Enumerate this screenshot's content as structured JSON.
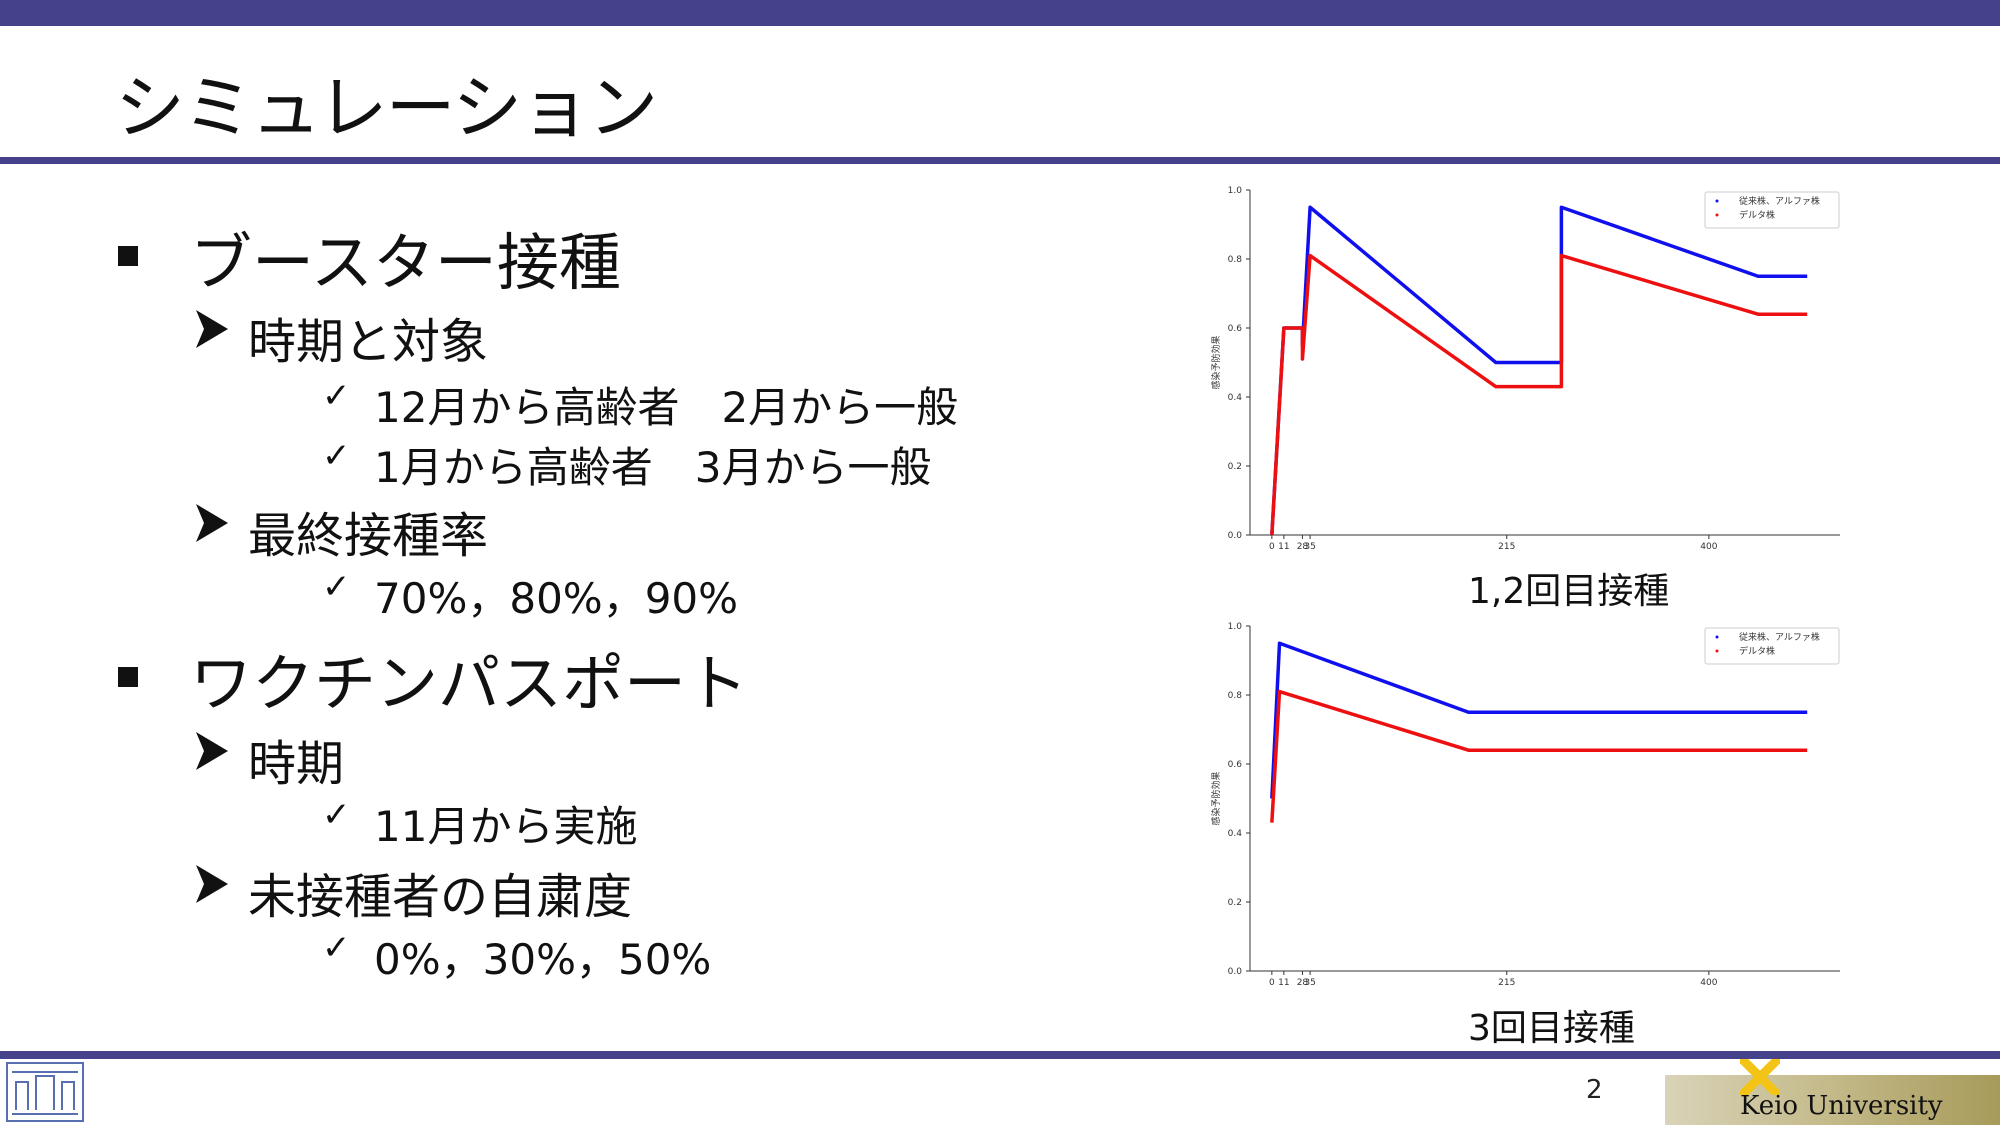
{
  "title": "シミュレーション",
  "sections": [
    {
      "label": "ブースター接種",
      "subs": [
        {
          "label": "時期と対象",
          "items": [
            "12月から高齢者　2月から一般",
            "1月から高齢者　3月から一般"
          ]
        },
        {
          "label": "最終接種率",
          "items": [
            "70%，80%，90%"
          ]
        }
      ]
    },
    {
      "label": "ワクチンパスポート",
      "subs": [
        {
          "label": "時期",
          "items": [
            "11月から実施"
          ]
        },
        {
          "label": "未接種者の自粛度",
          "items": [
            "0%，30%，50%"
          ]
        }
      ]
    }
  ],
  "captions": [
    "1,2回目接種",
    "3回目接種"
  ],
  "page_number": "2",
  "university": "Keio University",
  "colors": {
    "accent": "#45418a",
    "blue_series": "#1010ee",
    "red_series": "#ee1010"
  },
  "chart_data": [
    {
      "type": "line",
      "ylabel": "感染予防効果",
      "ylim": [
        0.0,
        1.0
      ],
      "yticks": [
        "0.0",
        "0.2",
        "0.4",
        "0.6",
        "0.8",
        "1.0"
      ],
      "xlim": [
        -20,
        520
      ],
      "xticks": [
        {
          "v": 0,
          "label": "0"
        },
        {
          "v": 11,
          "label": "11"
        },
        {
          "v": 28,
          "label": "28"
        },
        {
          "v": 35,
          "label": "35"
        },
        {
          "v": 215,
          "label": "215"
        },
        {
          "v": 400,
          "label": "400"
        }
      ],
      "legend": {
        "position": "top-right",
        "labels": [
          "従来株、アルファ株",
          "デルタ株"
        ]
      },
      "series": [
        {
          "name": "従来株、アルファ株",
          "color": "#1010ee",
          "x": [
            0,
            11,
            28,
            28,
            35,
            205,
            265,
            265,
            445,
            490
          ],
          "y": [
            0.0,
            0.6,
            0.6,
            0.55,
            0.95,
            0.5,
            0.5,
            0.95,
            0.75,
            0.75
          ]
        },
        {
          "name": "デルタ株",
          "color": "#ee1010",
          "x": [
            0,
            11,
            28,
            28,
            35,
            205,
            265,
            265,
            445,
            490
          ],
          "y": [
            0.0,
            0.6,
            0.6,
            0.51,
            0.81,
            0.43,
            0.43,
            0.81,
            0.64,
            0.64
          ]
        }
      ]
    },
    {
      "type": "line",
      "ylabel": "感染予防効果",
      "ylim": [
        0.0,
        1.0
      ],
      "yticks": [
        "0.0",
        "0.2",
        "0.4",
        "0.6",
        "0.8",
        "1.0"
      ],
      "xlim": [
        -20,
        520
      ],
      "xticks": [
        {
          "v": 0,
          "label": "0"
        },
        {
          "v": 11,
          "label": "11"
        },
        {
          "v": 28,
          "label": "28"
        },
        {
          "v": 35,
          "label": "35"
        },
        {
          "v": 215,
          "label": "215"
        },
        {
          "v": 400,
          "label": "400"
        }
      ],
      "legend": {
        "position": "top-right",
        "labels": [
          "従来株、アルファ株",
          "デルタ株"
        ]
      },
      "series": [
        {
          "name": "従来株、アルファ株",
          "color": "#1010ee",
          "x": [
            0,
            7,
            180,
            490
          ],
          "y": [
            0.5,
            0.95,
            0.75,
            0.75
          ]
        },
        {
          "name": "デルタ株",
          "color": "#ee1010",
          "x": [
            0,
            7,
            180,
            490
          ],
          "y": [
            0.43,
            0.81,
            0.64,
            0.64
          ]
        }
      ]
    }
  ]
}
